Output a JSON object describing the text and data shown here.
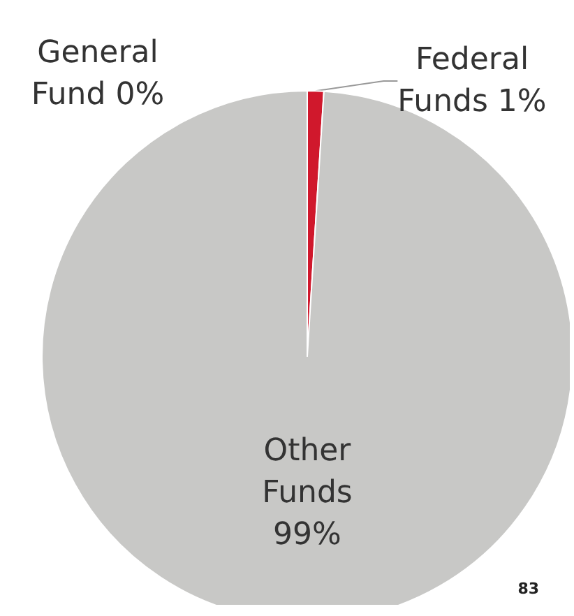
{
  "chart_data": {
    "type": "pie",
    "categories": [
      "Federal Funds",
      "Other Funds",
      "General Fund"
    ],
    "values": [
      1,
      99,
      0
    ],
    "colors": [
      "#d0182c",
      "#c8c8c6",
      "#ffffff"
    ],
    "value_labels": [
      "1%",
      "99%",
      "0%"
    ],
    "legend": false,
    "annotations": [
      "83"
    ]
  }
}
